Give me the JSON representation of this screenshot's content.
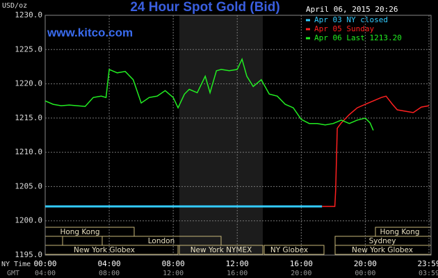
{
  "chart_data": {
    "type": "line",
    "title": "24 Hour Spot Gold (Bid)",
    "subtitle": "www.kitco.com",
    "timestamp": "April 06, 2015 20:26",
    "y_label": "USD/oz",
    "x_label": "NY Time",
    "x2_label": "GMT",
    "xlim": [
      0,
      24
    ],
    "xticks": [
      {
        "value": 0,
        "label": "00:00"
      },
      {
        "value": 4,
        "label": "04:00"
      },
      {
        "value": 8,
        "label": "08:00"
      },
      {
        "value": 12,
        "label": "12:00"
      },
      {
        "value": 16,
        "label": "16:00"
      },
      {
        "value": 20,
        "label": "20:00"
      },
      {
        "value": 23.98,
        "label": "23:59"
      }
    ],
    "gmt_labels": [
      "04:00",
      "08:00",
      "12:00",
      "16:00",
      "20:00",
      "00:00",
      "03:59"
    ],
    "ylim": [
      1195,
      1230
    ],
    "yticks": [
      {
        "value": 1195,
        "label": "1195.0"
      },
      {
        "value": 1200,
        "label": "1200.0"
      },
      {
        "value": 1205,
        "label": "1205.0"
      },
      {
        "value": 1210,
        "label": "1210.0"
      },
      {
        "value": 1215,
        "label": "1215.0"
      },
      {
        "value": 1220,
        "label": "1220.0"
      },
      {
        "value": 1225,
        "label": "1225.0"
      },
      {
        "value": 1230,
        "label": "1230.0"
      }
    ],
    "grid": true,
    "legend": "top-right",
    "sessions": [
      "Hong Kong",
      "London",
      "New York Globex",
      "New York NYMEX",
      "NY Globex",
      "Sydney",
      "Hong Kong",
      "New York Globex"
    ],
    "series": [
      {
        "name": "Apr 03 NY closed",
        "color": "#33ccff",
        "x": [
          0,
          17.3
        ],
        "values": [
          1202.1,
          1202.1
        ]
      },
      {
        "name": "Apr 05 Sunday",
        "color": "#ff2020",
        "x": [
          17.3,
          18.1,
          18.15,
          18.25,
          18.5,
          19,
          19.5,
          20,
          20.5,
          21,
          21.3,
          21.7,
          22,
          22.5,
          23,
          23.5,
          23.98
        ],
        "values": [
          1202.1,
          1202.1,
          1204.5,
          1213.5,
          1214.3,
          1215.5,
          1216.5,
          1217.0,
          1217.5,
          1218.0,
          1218.2,
          1217.0,
          1216.2,
          1216.0,
          1215.8,
          1216.6,
          1216.8
        ]
      },
      {
        "name": "Apr 06 Last 1213.20",
        "color": "#22ee22",
        "x": [
          0,
          0.5,
          1,
          1.5,
          2,
          2.5,
          3,
          3.5,
          3.8,
          4,
          4.5,
          5,
          5.5,
          6,
          6.5,
          7,
          7.5,
          8,
          8.3,
          8.7,
          9,
          9.5,
          10,
          10.3,
          10.7,
          11,
          11.5,
          12,
          12.3,
          12.6,
          13,
          13.5,
          14,
          14.5,
          15,
          15.5,
          16,
          16.5,
          17,
          17.5,
          18,
          18.5,
          19,
          19.5,
          20,
          20.3,
          20.5
        ],
        "values": [
          1217.5,
          1217.0,
          1216.8,
          1216.9,
          1216.8,
          1216.7,
          1218.0,
          1218.2,
          1218.0,
          1222.1,
          1221.6,
          1221.8,
          1220.6,
          1217.2,
          1218.0,
          1218.2,
          1219.0,
          1218.0,
          1216.5,
          1218.5,
          1219.2,
          1218.7,
          1221.1,
          1218.7,
          1221.9,
          1222.1,
          1221.9,
          1222.1,
          1223.6,
          1221.1,
          1219.6,
          1220.6,
          1218.5,
          1218.2,
          1217.0,
          1216.5,
          1214.8,
          1214.2,
          1214.2,
          1214.0,
          1214.2,
          1214.7,
          1214.2,
          1214.7,
          1215.0,
          1214.3,
          1213.2
        ]
      }
    ]
  }
}
